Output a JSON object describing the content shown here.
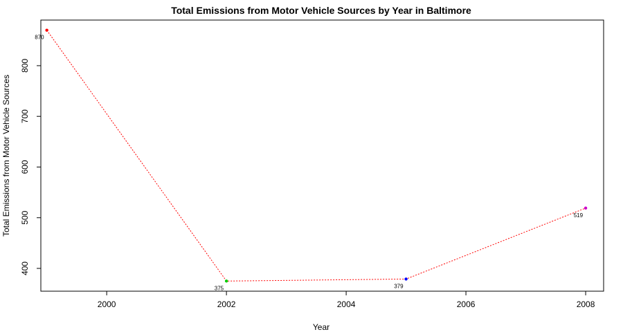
{
  "chart_data": {
    "type": "line",
    "title": "Total Emissions from Motor Vehicle Sources by Year in Baltimore",
    "xlabel": "Year",
    "ylabel": "Total Emissions from Motor Vehicle Sources",
    "x": [
      1999,
      2002,
      2005,
      2008
    ],
    "values": [
      870,
      375,
      379,
      519
    ],
    "point_labels": [
      "870",
      "375",
      "379",
      "519"
    ],
    "point_colors": [
      "#ff0000",
      "#00cc00",
      "#0000ff",
      "#cc00cc"
    ],
    "line_color": "#ff0000",
    "line_style": "dotted",
    "xlim": [
      1998.9,
      2008.3
    ],
    "ylim": [
      355,
      890
    ],
    "x_ticks": [
      2000,
      2002,
      2004,
      2006,
      2008
    ],
    "x_tick_labels": [
      "2000",
      "2002",
      "2004",
      "2006",
      "2008"
    ],
    "y_ticks": [
      400,
      500,
      600,
      700,
      800
    ],
    "y_tick_labels": [
      "400",
      "500",
      "600",
      "700",
      "800"
    ],
    "grid": false,
    "legend": "none"
  }
}
